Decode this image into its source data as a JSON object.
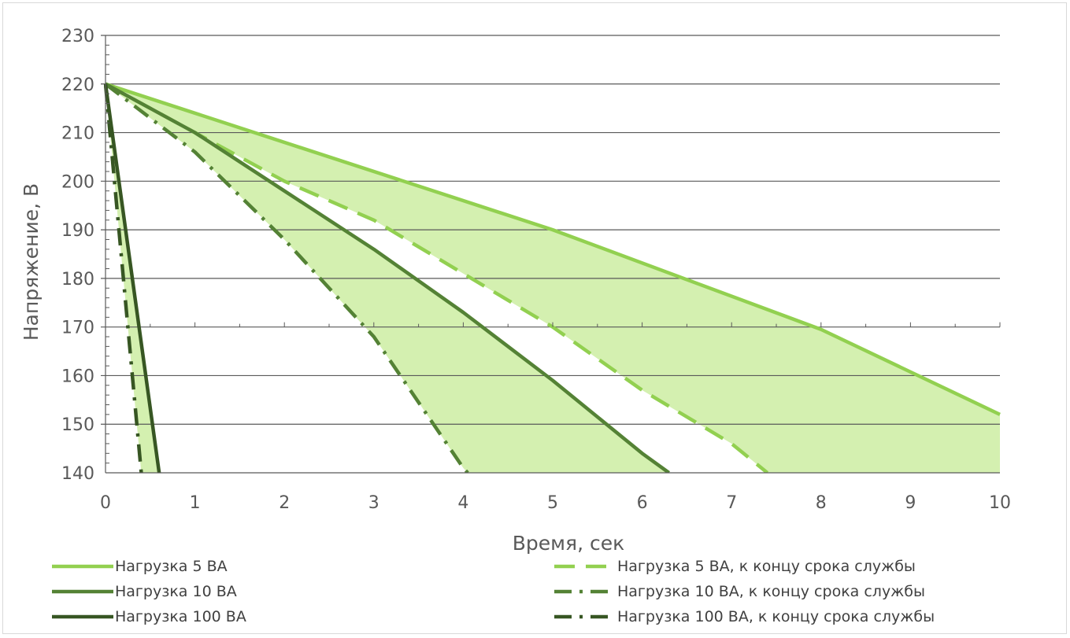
{
  "chart_data": {
    "type": "line",
    "title": "",
    "xlabel": "Время, сек",
    "ylabel": "Напряжение, В",
    "xlim": [
      0,
      10
    ],
    "ylim": [
      140,
      230
    ],
    "x_ticks": [
      0,
      1,
      2,
      3,
      4,
      5,
      6,
      7,
      8,
      9,
      10
    ],
    "y_ticks": [
      140,
      150,
      160,
      170,
      180,
      190,
      200,
      210,
      220,
      230
    ],
    "grid": "horizontal",
    "legend_position": "bottom",
    "colors": {
      "light": "#92d050",
      "mid": "#548235",
      "dark": "#375623",
      "band_fill": "#d4f0b0",
      "grid": "#595959",
      "axis_text": "#595959"
    },
    "bands": [
      {
        "upper": "load_5",
        "lower": "load_5_eol"
      },
      {
        "upper": "load_10",
        "lower": "load_10_eol"
      },
      {
        "upper": "load_100",
        "lower": "load_100_eol"
      }
    ],
    "series": [
      {
        "id": "load_5",
        "name": "Нагрузка 5 ВА",
        "color": "#92d050",
        "dash": "solid",
        "points": [
          [
            0,
            220
          ],
          [
            5,
            190
          ],
          [
            8,
            169.5
          ],
          [
            10,
            152
          ]
        ]
      },
      {
        "id": "load_5_eol",
        "name": "Нагрузка 5 ВА, к концу срока службы",
        "color": "#92d050",
        "dash": "dash",
        "points": [
          [
            0,
            220
          ],
          [
            2,
            200
          ],
          [
            3,
            192
          ],
          [
            4,
            181
          ],
          [
            5,
            170
          ],
          [
            6,
            157
          ],
          [
            7,
            146
          ],
          [
            7.4,
            140
          ]
        ]
      },
      {
        "id": "load_10",
        "name": "Нагрузка 10 ВА",
        "color": "#548235",
        "dash": "solid",
        "points": [
          [
            0,
            220
          ],
          [
            1,
            210
          ],
          [
            2,
            198
          ],
          [
            3,
            186
          ],
          [
            4,
            173
          ],
          [
            5,
            159
          ],
          [
            6,
            144
          ],
          [
            6.3,
            140
          ]
        ]
      },
      {
        "id": "load_10_eol",
        "name": "Нагрузка 10 ВА, к концу срока службы",
        "color": "#548235",
        "dash": "dashdot",
        "points": [
          [
            0,
            220
          ],
          [
            1,
            206
          ],
          [
            2,
            188
          ],
          [
            3,
            168
          ],
          [
            4,
            141
          ],
          [
            4.05,
            140
          ]
        ]
      },
      {
        "id": "load_100",
        "name": "Нагрузка 100 ВА",
        "color": "#375623",
        "dash": "solid",
        "points": [
          [
            0,
            220
          ],
          [
            0.6,
            140
          ]
        ]
      },
      {
        "id": "load_100_eol",
        "name": "Нагрузка 100 ВА, к концу срока службы",
        "color": "#375623",
        "dash": "dashdot",
        "points": [
          [
            0,
            220
          ],
          [
            0.4,
            140
          ]
        ]
      }
    ]
  }
}
